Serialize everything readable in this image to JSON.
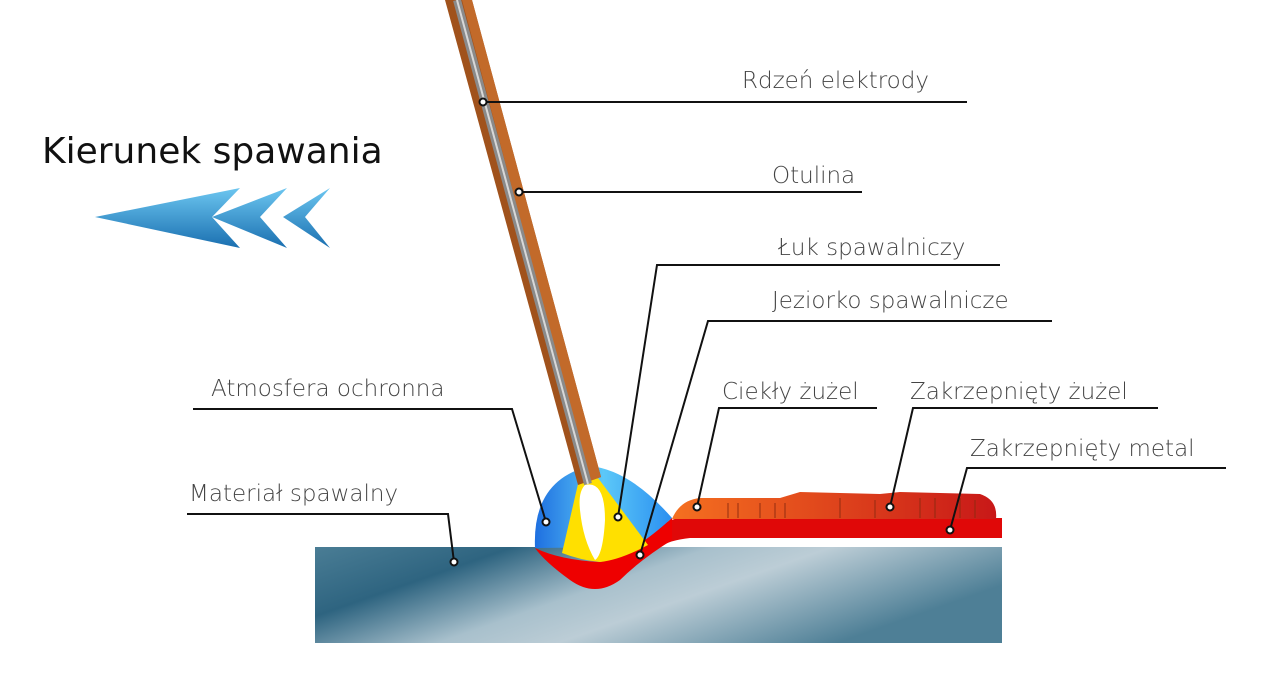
{
  "title": "Kierunek spawania",
  "labels": {
    "core": "Rdzeń elektrody",
    "coating": "Otulina",
    "arc": "Łuk spawalniczy",
    "pool": "Jeziorko spawalnicze",
    "shield": "Atmosfera ochronna",
    "liquid_slag": "Ciekły żużel",
    "solid_slag": "Zakrzepnięty żużel",
    "solid_metal": "Zakrzepnięty metal",
    "base": "Materiał spawalny"
  },
  "colors": {
    "arrow": "#2a8fcf",
    "coating": "#a0521c",
    "core": "#9a9a9a",
    "shield": "#3aa7f0",
    "arc": "#ffe000",
    "pool": "#ee0000",
    "slag": "#f05a10",
    "base": "#6f95a8"
  }
}
